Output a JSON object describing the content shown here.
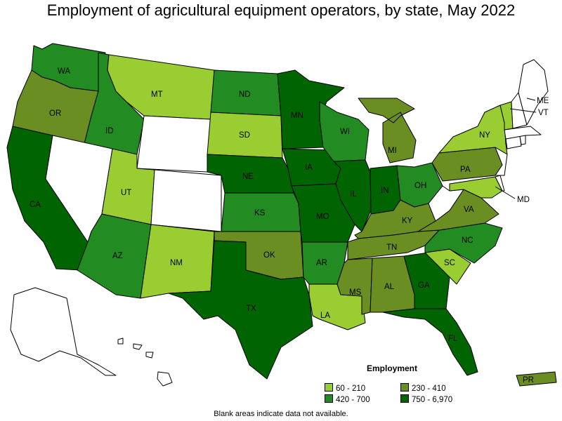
{
  "title": "Employment of agricultural equipment operators, by state, May 2022",
  "footnote": "Blank areas indicate data not available.",
  "legend": {
    "title": "Employment",
    "items": [
      {
        "label": "60 - 210",
        "color": "#9ACD32"
      },
      {
        "label": "230 - 410",
        "color": "#6B8E23"
      },
      {
        "label": "420 - 700",
        "color": "#228B22"
      },
      {
        "label": "750 - 6,970",
        "color": "#006400"
      }
    ]
  },
  "states": {
    "WA": {
      "label": "WA",
      "bin": 2
    },
    "OR": {
      "label": "OR",
      "bin": 1
    },
    "CA": {
      "label": "CA",
      "bin": 3
    },
    "ID": {
      "label": "ID",
      "bin": 2
    },
    "NV": {
      "label": "",
      "bin": null
    },
    "MT": {
      "label": "MT",
      "bin": 0
    },
    "WY": {
      "label": "",
      "bin": null
    },
    "UT": {
      "label": "UT",
      "bin": 0
    },
    "AZ": {
      "label": "AZ",
      "bin": 2
    },
    "CO": {
      "label": "",
      "bin": null
    },
    "NM": {
      "label": "NM",
      "bin": 0
    },
    "ND": {
      "label": "ND",
      "bin": 2
    },
    "SD": {
      "label": "SD",
      "bin": 0
    },
    "NE": {
      "label": "NE",
      "bin": 3
    },
    "KS": {
      "label": "KS",
      "bin": 2
    },
    "OK": {
      "label": "OK",
      "bin": 1
    },
    "TX": {
      "label": "TX",
      "bin": 3
    },
    "MN": {
      "label": "MN",
      "bin": 3
    },
    "IA": {
      "label": "IA",
      "bin": 3
    },
    "MO": {
      "label": "MO",
      "bin": 3
    },
    "AR": {
      "label": "AR",
      "bin": 2
    },
    "LA": {
      "label": "LA",
      "bin": 0
    },
    "WI": {
      "label": "WI",
      "bin": 2
    },
    "IL": {
      "label": "IL",
      "bin": 3
    },
    "MI": {
      "label": "MI",
      "bin": 1
    },
    "IN": {
      "label": "IN",
      "bin": 3
    },
    "OH": {
      "label": "OH",
      "bin": 2
    },
    "KY": {
      "label": "KY",
      "bin": 1
    },
    "TN": {
      "label": "TN",
      "bin": 1
    },
    "MS": {
      "label": "MS",
      "bin": 1
    },
    "AL": {
      "label": "AL",
      "bin": 1
    },
    "GA": {
      "label": "GA",
      "bin": 3
    },
    "FL": {
      "label": "FL",
      "bin": 3
    },
    "SC": {
      "label": "SC",
      "bin": 0
    },
    "NC": {
      "label": "NC",
      "bin": 2
    },
    "VA": {
      "label": "VA",
      "bin": 1
    },
    "WV": {
      "label": "",
      "bin": null
    },
    "PA": {
      "label": "PA",
      "bin": 1
    },
    "NY": {
      "label": "NY",
      "bin": 0
    },
    "MD": {
      "label": "MD",
      "bin": 0
    },
    "DE": {
      "label": "",
      "bin": null
    },
    "NJ": {
      "label": "",
      "bin": null
    },
    "CT": {
      "label": "",
      "bin": null
    },
    "RI": {
      "label": "",
      "bin": null
    },
    "MA": {
      "label": "",
      "bin": null
    },
    "VT": {
      "label": "VT",
      "bin": 0
    },
    "NH": {
      "label": "",
      "bin": null
    },
    "ME": {
      "label": "ME",
      "bin": null
    },
    "AK": {
      "label": "",
      "bin": null
    },
    "HI": {
      "label": "",
      "bin": null
    },
    "PR": {
      "label": "PR",
      "bin": 1
    }
  }
}
